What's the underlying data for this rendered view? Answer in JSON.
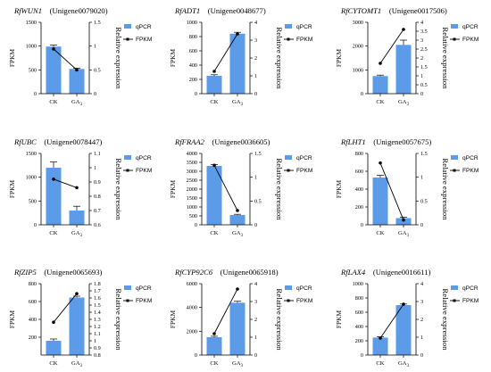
{
  "colors": {
    "bar": "#5b9be8",
    "line": "#000000",
    "axis": "#000000"
  },
  "legend": {
    "bar_label": "qPCR",
    "line_label": "FPKM"
  },
  "axis_titles": {
    "left": "FPKM",
    "right": "Relative expression"
  },
  "chart_data": [
    {
      "type": "bar",
      "gene": "RfWUN1",
      "id": "Unigene0079020",
      "categories": [
        "CK",
        "GA3"
      ],
      "series": [
        {
          "name": "qPCR",
          "values": [
            990,
            520
          ],
          "errors": [
            30,
            15
          ]
        },
        {
          "name": "FPKM",
          "values": [
            0.94,
            0.5
          ]
        }
      ],
      "ylim": [
        0,
        1500
      ],
      "yticks": [
        0,
        500,
        1000,
        1500
      ],
      "y2lim": [
        0,
        1.5
      ],
      "y2ticks": [
        0,
        0.5,
        1.0,
        1.5
      ],
      "xlabel": "",
      "ylabel": "FPKM",
      "y2label": "Relative expression"
    },
    {
      "type": "bar",
      "gene": "RfADT1",
      "id": "Unigene0048677",
      "categories": [
        "CK",
        "GA3"
      ],
      "series": [
        {
          "name": "qPCR",
          "values": [
            250,
            840
          ],
          "errors": [
            15,
            20
          ]
        },
        {
          "name": "FPKM",
          "values": [
            1.25,
            3.35
          ]
        }
      ],
      "ylim": [
        0,
        1000
      ],
      "yticks": [
        0,
        200,
        400,
        600,
        800,
        1000
      ],
      "y2lim": [
        0,
        4.0
      ],
      "y2ticks": [
        0,
        1.0,
        2.0,
        3.0,
        4.0
      ],
      "xlabel": "",
      "ylabel": "FPKM",
      "y2label": "Relative expression"
    },
    {
      "type": "bar",
      "gene": "RfCYTOMT1",
      "id": "Unigene0017506",
      "categories": [
        "CK",
        "GA3"
      ],
      "series": [
        {
          "name": "qPCR",
          "values": [
            740,
            2050
          ],
          "errors": [
            40,
            200
          ]
        },
        {
          "name": "FPKM",
          "values": [
            1.7,
            3.6
          ]
        }
      ],
      "ylim": [
        0,
        3000
      ],
      "yticks": [
        0,
        1000,
        2000,
        3000
      ],
      "y2lim": [
        0,
        4.0
      ],
      "y2ticks": [
        0,
        0.5,
        1.0,
        1.5,
        2.0,
        2.5,
        3.0,
        3.5,
        4.0
      ],
      "xlabel": "",
      "ylabel": "FPKM",
      "y2label": "Relative expression"
    },
    {
      "type": "bar",
      "gene": "RfUBC",
      "id": "Unigene0078447",
      "categories": [
        "CK",
        "GA3"
      ],
      "series": [
        {
          "name": "qPCR",
          "values": [
            1200,
            300
          ],
          "errors": [
            120,
            90
          ]
        },
        {
          "name": "FPKM",
          "values": [
            0.92,
            0.86
          ]
        }
      ],
      "ylim": [
        0,
        1500
      ],
      "yticks": [
        0,
        500,
        1000,
        1500
      ],
      "y2lim": [
        0.6,
        1.1
      ],
      "y2ticks": [
        0.6,
        0.7,
        0.8,
        0.9,
        1.0,
        1.1
      ],
      "xlabel": "",
      "ylabel": "FPKM",
      "y2label": "Relative expression"
    },
    {
      "type": "bar",
      "gene": "RfFRAA2",
      "id": "Unigene0036605",
      "categories": [
        "CK",
        "GA3"
      ],
      "series": [
        {
          "name": "qPCR",
          "values": [
            3300,
            550
          ],
          "errors": [
            80,
            40
          ]
        },
        {
          "name": "FPKM",
          "values": [
            1.25,
            0.3
          ]
        }
      ],
      "ylim": [
        0,
        4000
      ],
      "yticks": [
        0,
        500,
        1000,
        1500,
        2000,
        2500,
        3000,
        3500,
        4000
      ],
      "y2lim": [
        0,
        1.5
      ],
      "y2ticks": [
        0,
        0.5,
        1.0,
        1.5
      ],
      "xlabel": "",
      "ylabel": "FPKM",
      "y2label": "Relative expression"
    },
    {
      "type": "bar",
      "gene": "RfLHT1",
      "id": "Unigene0057675",
      "categories": [
        "CK",
        "GA3"
      ],
      "series": [
        {
          "name": "qPCR",
          "values": [
            530,
            75
          ],
          "errors": [
            25,
            10
          ]
        },
        {
          "name": "FPKM",
          "values": [
            1.3,
            0.1
          ]
        }
      ],
      "ylim": [
        0,
        800
      ],
      "yticks": [
        0,
        200,
        400,
        600,
        800
      ],
      "y2lim": [
        0,
        1.5
      ],
      "y2ticks": [
        0,
        0.5,
        1.0,
        1.5
      ],
      "xlabel": "",
      "ylabel": "FPKM",
      "y2label": "Relative expression"
    },
    {
      "type": "bar",
      "gene": "RfZIP5",
      "id": "Unigene0065693",
      "categories": [
        "CK",
        "GA3"
      ],
      "series": [
        {
          "name": "qPCR",
          "values": [
            160,
            645
          ],
          "errors": [
            20,
            15
          ]
        },
        {
          "name": "FPKM",
          "values": [
            1.26,
            1.66
          ]
        }
      ],
      "ylim": [
        0,
        800
      ],
      "yticks": [
        200,
        400,
        600,
        800
      ],
      "y2lim": [
        0.8,
        1.8
      ],
      "y2ticks": [
        0.8,
        0.9,
        1.0,
        1.1,
        1.2,
        1.3,
        1.4,
        1.5,
        1.6,
        1.7,
        1.8
      ],
      "xlabel": "",
      "ylabel": "FPKM",
      "y2label": "Relative expression"
    },
    {
      "type": "bar",
      "gene": "RfCYP92C6",
      "id": "Unigene0065918",
      "categories": [
        "CK",
        "GA3"
      ],
      "series": [
        {
          "name": "qPCR",
          "values": [
            1500,
            4400
          ],
          "errors": [
            80,
            120
          ]
        },
        {
          "name": "FPKM",
          "values": [
            1.2,
            3.7
          ]
        }
      ],
      "ylim": [
        0,
        6000
      ],
      "yticks": [
        0,
        2000,
        4000,
        6000
      ],
      "y2lim": [
        0,
        4.0
      ],
      "y2ticks": [
        0,
        1.0,
        2.0,
        3.0,
        4.0
      ],
      "xlabel": "",
      "ylabel": "FPKM",
      "y2label": "Relative expression"
    },
    {
      "type": "bar",
      "gene": "RfLAX4",
      "id": "Unigene0016611",
      "categories": [
        "CK",
        "GA3"
      ],
      "series": [
        {
          "name": "qPCR",
          "values": [
            245,
            700
          ],
          "errors": [
            10,
            15
          ]
        },
        {
          "name": "FPKM",
          "values": [
            0.95,
            2.85
          ]
        }
      ],
      "ylim": [
        0,
        1000
      ],
      "yticks": [
        0,
        200,
        400,
        600,
        800,
        1000
      ],
      "y2lim": [
        0,
        4.0
      ],
      "y2ticks": [
        0,
        1.0,
        2.0,
        3.0,
        4.0
      ],
      "xlabel": "",
      "ylabel": "FPKM",
      "y2label": "Relative expression"
    }
  ]
}
